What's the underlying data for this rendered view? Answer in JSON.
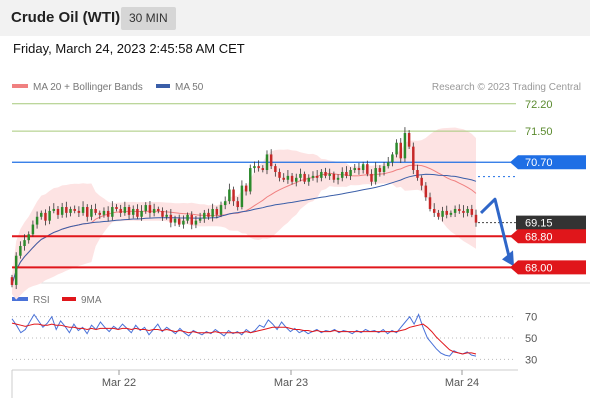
{
  "header": {
    "title": "Crude Oil (WTI)",
    "timeframe": "30 MIN"
  },
  "datetime": "Friday, March 24, 2023 2:45:58 AM CET",
  "chart_data": [
    {
      "type": "candlestick",
      "legend": [
        {
          "label": "MA 20 + Bollinger Bands",
          "color": "#f08080"
        },
        {
          "label": "MA 50",
          "color": "#3a5ea8"
        }
      ],
      "attribution": "Research © 2023 Trading Central",
      "ylim": [
        67.6,
        72.4
      ],
      "x_ticks": [
        "Mar 22",
        "Mar 23",
        "Mar 24"
      ],
      "levels": [
        {
          "value": 72.2,
          "label": "72.20",
          "kind": "target",
          "color": "#a6c97a"
        },
        {
          "value": 71.5,
          "label": "71.50",
          "kind": "target",
          "color": "#a6c97a"
        },
        {
          "value": 70.7,
          "label": "70.70",
          "kind": "pivot",
          "color": "#1f6fe5"
        },
        {
          "value": 69.15,
          "label": "69.15",
          "kind": "last-price",
          "color": "#333333"
        },
        {
          "value": 68.8,
          "label": "68.80",
          "kind": "support",
          "color": "#e0161b"
        },
        {
          "value": 68.0,
          "label": "68.00",
          "kind": "support",
          "color": "#e0161b"
        }
      ],
      "close_series": [
        67.55,
        68.3,
        68.55,
        68.7,
        68.85,
        69.1,
        69.3,
        69.4,
        69.2,
        69.45,
        69.5,
        69.35,
        69.55,
        69.4,
        69.5,
        69.45,
        69.4,
        69.55,
        69.3,
        69.5,
        69.4,
        69.35,
        69.45,
        69.3,
        69.55,
        69.5,
        69.4,
        69.55,
        69.35,
        69.5,
        69.3,
        69.45,
        69.6,
        69.4,
        69.5,
        69.45,
        69.3,
        69.35,
        69.15,
        69.25,
        69.1,
        69.2,
        69.35,
        69.1,
        69.2,
        69.25,
        69.4,
        69.3,
        69.5,
        69.35,
        69.6,
        69.7,
        70.0,
        69.7,
        69.55,
        70.1,
        69.95,
        70.55,
        70.6,
        70.55,
        70.5,
        70.9,
        70.6,
        70.45,
        70.3,
        70.25,
        70.35,
        70.2,
        70.3,
        70.4,
        70.2,
        70.3,
        70.35,
        70.3,
        70.45,
        70.35,
        70.4,
        70.25,
        70.3,
        70.45,
        70.35,
        70.5,
        70.55,
        70.5,
        70.65,
        70.4,
        70.2,
        70.55,
        70.45,
        70.6,
        70.7,
        70.9,
        71.2,
        70.8,
        71.45,
        71.1,
        70.5,
        70.3,
        70.1,
        69.8,
        69.5,
        69.4,
        69.3,
        69.45,
        69.35,
        69.4,
        69.5,
        69.45,
        69.4,
        69.5,
        69.35,
        69.15
      ],
      "arrow": {
        "from": 69.45,
        "to": 68.0,
        "direction": "down"
      }
    },
    {
      "type": "line",
      "legend": [
        {
          "label": "RSI",
          "color": "#4a72d8"
        },
        {
          "label": "9MA",
          "color": "#e0161b"
        }
      ],
      "ylim": [
        20,
        80
      ],
      "y_ticks": [
        70,
        50,
        30
      ],
      "series": [
        {
          "name": "RSI",
          "values": [
            68,
            62,
            55,
            58,
            65,
            72,
            66,
            60,
            64,
            70,
            58,
            66,
            61,
            55,
            63,
            57,
            60,
            54,
            62,
            58,
            65,
            60,
            56,
            61,
            58,
            63,
            59,
            55,
            62,
            57,
            60,
            53,
            58,
            63,
            56,
            60,
            57,
            54,
            59,
            55,
            52,
            57,
            55,
            53,
            56,
            54,
            58,
            55,
            52,
            57,
            54,
            56,
            53,
            58,
            55,
            57,
            62,
            60,
            67,
            63,
            58,
            65,
            60,
            56,
            59,
            55,
            57,
            54,
            56,
            58,
            55,
            57,
            56,
            58,
            55,
            57,
            56,
            54,
            57,
            55,
            58,
            56,
            57,
            55,
            58,
            54,
            57,
            55,
            60,
            65,
            70,
            63,
            72,
            60,
            50,
            45,
            40,
            36,
            34,
            33,
            38,
            36,
            35,
            37,
            34,
            33
          ]
        },
        {
          "name": "9MA",
          "values": [
            64,
            63,
            62,
            61,
            62,
            63,
            63,
            62,
            62,
            63,
            62,
            62,
            61,
            60,
            60,
            59,
            59,
            58,
            59,
            58,
            59,
            59,
            59,
            59,
            58,
            59,
            59,
            58,
            59,
            58,
            58,
            57,
            58,
            58,
            57,
            58,
            57,
            56,
            57,
            56,
            55,
            56,
            55,
            55,
            55,
            55,
            56,
            55,
            55,
            55,
            55,
            55,
            55,
            56,
            55,
            56,
            57,
            58,
            59,
            60,
            60,
            60,
            60,
            59,
            58,
            58,
            57,
            57,
            56,
            57,
            56,
            56,
            56,
            57,
            56,
            56,
            56,
            56,
            56,
            56,
            56,
            56,
            56,
            56,
            56,
            56,
            56,
            56,
            57,
            58,
            60,
            61,
            62,
            63,
            60,
            56,
            51,
            47,
            43,
            39,
            37,
            36,
            35,
            36,
            36,
            35
          ]
        }
      ]
    }
  ]
}
